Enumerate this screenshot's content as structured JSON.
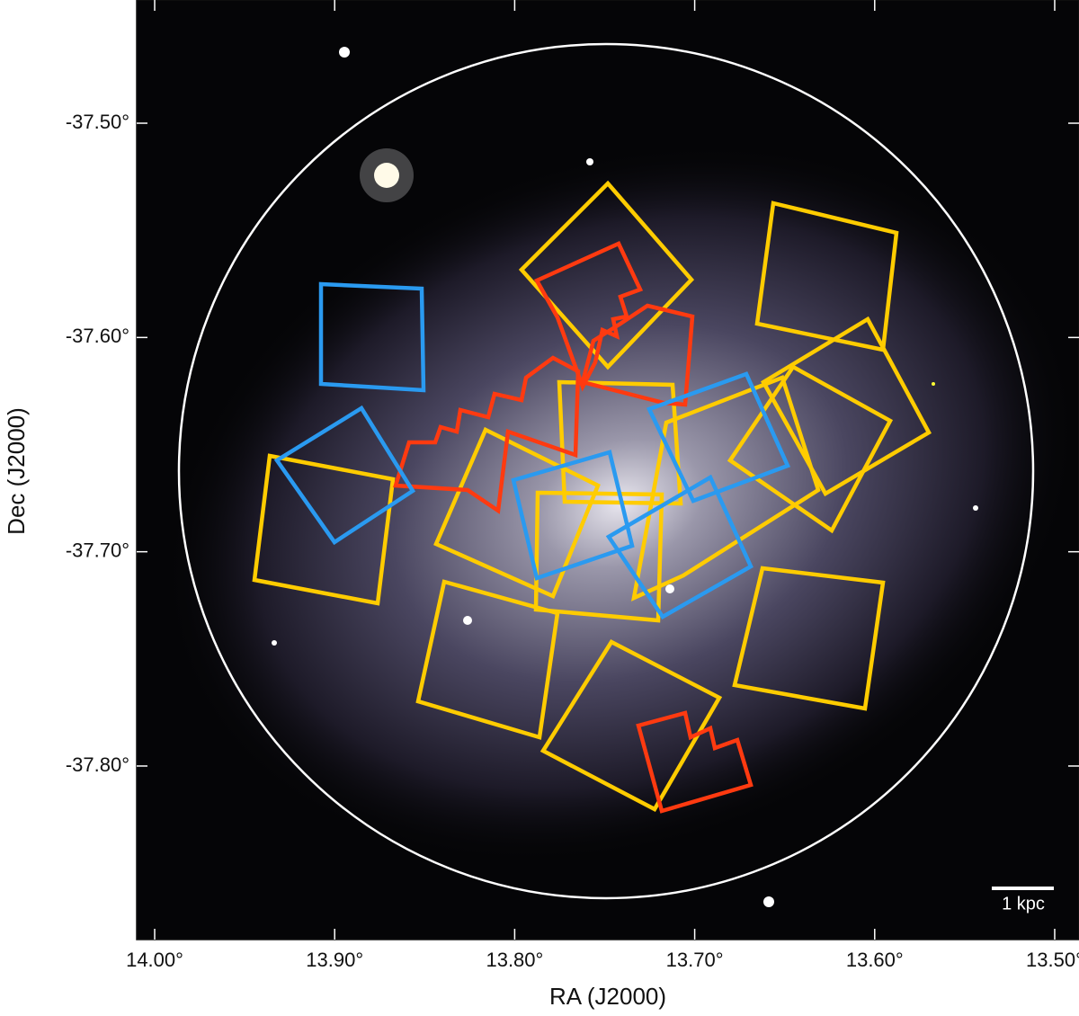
{
  "chart_data": {
    "type": "image",
    "xlabel": "RA (J2000)",
    "ylabel": "Dec (J2000)",
    "xlim": [
      14.01,
      13.4865
    ],
    "ylim": [
      -37.881,
      -37.4425
    ],
    "xticks": [
      {
        "value": 14.0,
        "label": "14.00°"
      },
      {
        "value": 13.9,
        "label": "13.90°"
      },
      {
        "value": 13.8,
        "label": "13.80°"
      },
      {
        "value": 13.7,
        "label": "13.70°"
      },
      {
        "value": 13.6,
        "label": "13.60°"
      },
      {
        "value": 13.5,
        "label": "13.50°"
      }
    ],
    "yticks": [
      {
        "value": -37.5,
        "label": "-37.50°"
      },
      {
        "value": -37.6,
        "label": "-37.60°"
      },
      {
        "value": -37.7,
        "label": "-37.70°"
      },
      {
        "value": -37.8,
        "label": "-37.80°"
      }
    ],
    "annotations": [
      "1 kpc"
    ]
  }
}
